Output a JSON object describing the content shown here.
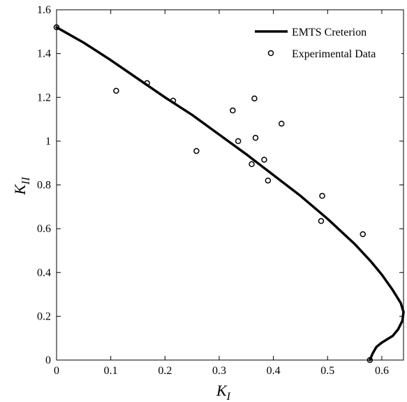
{
  "chart_data": {
    "type": "scatter",
    "xlim": [
      0,
      0.64
    ],
    "ylim": [
      0,
      1.6
    ],
    "x_ticks": [
      0,
      0.1,
      0.2,
      0.3,
      0.4,
      0.5,
      0.6
    ],
    "x_tick_labels": [
      "0",
      "0.1",
      "0.2",
      "0.3",
      "0.4",
      "0.5",
      "0.6"
    ],
    "y_ticks": [
      0,
      0.2,
      0.4,
      0.6,
      0.8,
      1.0,
      1.2,
      1.4,
      1.6
    ],
    "y_tick_labels": [
      "0",
      "0.2",
      "0.4",
      "0.6",
      "0.8",
      "1",
      "1.2",
      "1.4",
      "1.6"
    ],
    "xlabel": {
      "main": "K",
      "sub": "I"
    },
    "ylabel": {
      "main": "K",
      "sub": "II"
    },
    "grid": false,
    "legend_position": "top-right",
    "series": [
      {
        "name": "EMTS Creterion",
        "kind": "line",
        "color": "#000000",
        "points": [
          [
            0,
            1.52
          ],
          [
            0.05,
            1.45
          ],
          [
            0.1,
            1.37
          ],
          [
            0.15,
            1.285
          ],
          [
            0.2,
            1.2
          ],
          [
            0.25,
            1.12
          ],
          [
            0.3,
            1.03
          ],
          [
            0.35,
            0.94
          ],
          [
            0.4,
            0.845
          ],
          [
            0.45,
            0.75
          ],
          [
            0.5,
            0.645
          ],
          [
            0.55,
            0.53
          ],
          [
            0.58,
            0.45
          ],
          [
            0.6,
            0.39
          ],
          [
            0.62,
            0.32
          ],
          [
            0.635,
            0.26
          ],
          [
            0.64,
            0.22
          ],
          [
            0.638,
            0.18
          ],
          [
            0.63,
            0.14
          ],
          [
            0.62,
            0.11
          ],
          [
            0.6,
            0.08
          ],
          [
            0.59,
            0.06
          ],
          [
            0.583,
            0.03
          ],
          [
            0.578,
            0.0
          ]
        ]
      },
      {
        "name": "Experimental Data",
        "kind": "scatter",
        "color": "#000000",
        "points": [
          [
            0,
            1.52
          ],
          [
            0.11,
            1.23
          ],
          [
            0.167,
            1.265
          ],
          [
            0.215,
            1.185
          ],
          [
            0.258,
            0.955
          ],
          [
            0.325,
            1.14
          ],
          [
            0.335,
            1.0
          ],
          [
            0.36,
            0.895
          ],
          [
            0.365,
            1.195
          ],
          [
            0.367,
            1.015
          ],
          [
            0.383,
            0.915
          ],
          [
            0.39,
            0.82
          ],
          [
            0.415,
            1.08
          ],
          [
            0.488,
            0.635
          ],
          [
            0.49,
            0.75
          ],
          [
            0.565,
            0.575
          ],
          [
            0.578,
            0.0
          ]
        ]
      }
    ]
  }
}
